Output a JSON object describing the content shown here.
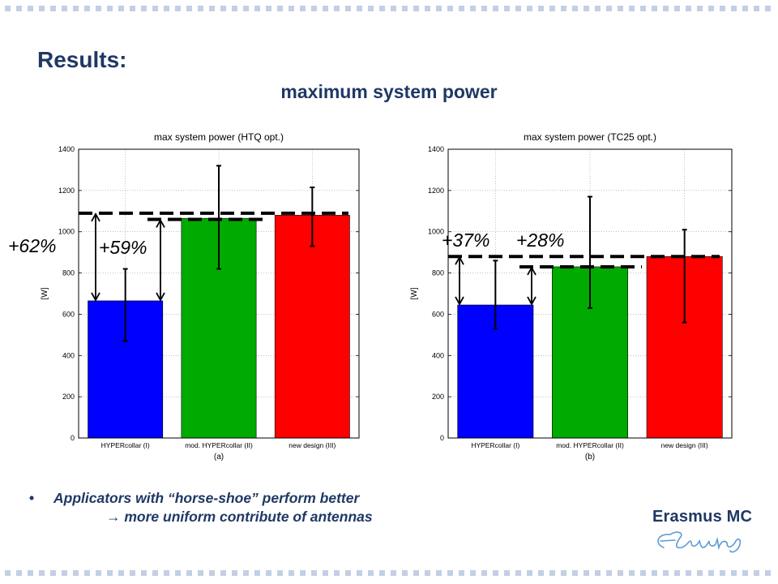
{
  "slide": {
    "title": "Results:",
    "subtitle": "maximum system power",
    "bullet_line1": "Applicators with “horse-shoe” perform better",
    "bullet_line2": " more uniform contribute of antennas",
    "logo_text": "Erasmus MC",
    "logo_script": "Ezafung"
  },
  "colors": {
    "title": "#1f3864",
    "bar_blue": "#0000ff",
    "bar_green": "#00aa00",
    "bar_red": "#ff0000",
    "dots": "#c3cfe4"
  },
  "chart_data": [
    {
      "type": "bar",
      "title": "max system power (HTQ opt.)",
      "ylabel": "[W]",
      "xlabel": "(a)",
      "categories": [
        "HYPERcollar (I)",
        "mod. HYPERcollar (II)",
        "new design (III)"
      ],
      "values": [
        665,
        1065,
        1080
      ],
      "error_low": [
        470,
        820,
        930
      ],
      "error_high": [
        820,
        1320,
        1215
      ],
      "bar_colors": [
        "#0000ff",
        "#00aa00",
        "#ff0000"
      ],
      "ylim": [
        0,
        1400
      ],
      "yticks": [
        0,
        200,
        400,
        600,
        800,
        1000,
        1200,
        1400
      ],
      "grid": true,
      "reference_lines": [
        1090,
        1060
      ],
      "annotations": [
        "+62%",
        "+59%"
      ]
    },
    {
      "type": "bar",
      "title": "max system power (TC25 opt.)",
      "ylabel": "[W]",
      "xlabel": "(b)",
      "categories": [
        "HYPERcollar (I)",
        "mod. HYPERcollar (II)",
        "new design (III)"
      ],
      "values": [
        645,
        830,
        880
      ],
      "error_low": [
        530,
        630,
        560
      ],
      "error_high": [
        860,
        1170,
        1010
      ],
      "bar_colors": [
        "#0000ff",
        "#00aa00",
        "#ff0000"
      ],
      "ylim": [
        0,
        1400
      ],
      "yticks": [
        0,
        200,
        400,
        600,
        800,
        1000,
        1200,
        1400
      ],
      "grid": true,
      "reference_lines": [
        880,
        830
      ],
      "annotations": [
        "+37%",
        "+28%"
      ]
    }
  ]
}
